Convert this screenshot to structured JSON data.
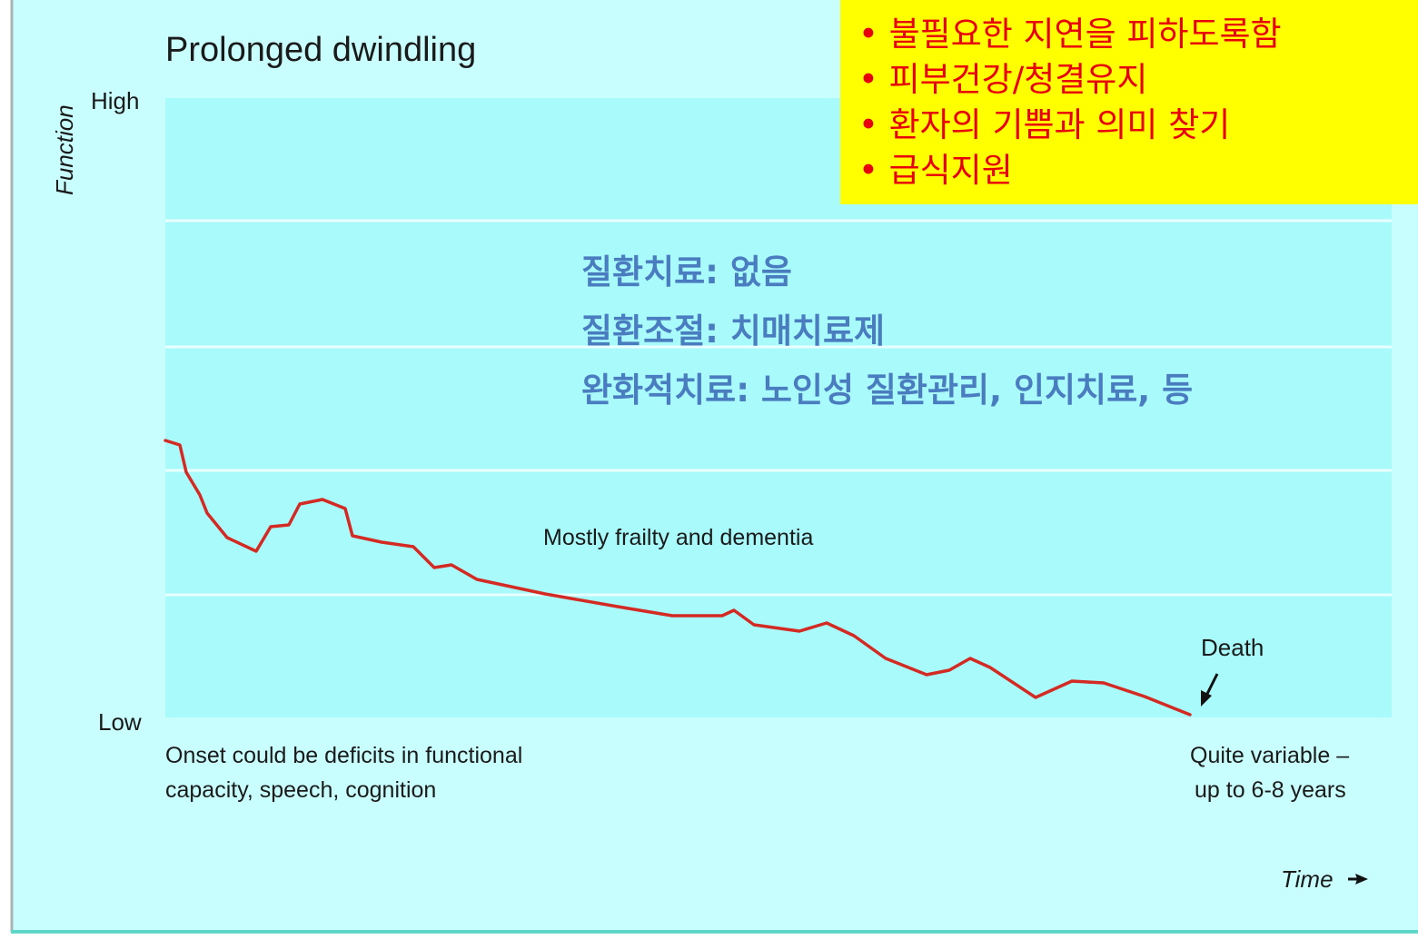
{
  "title": "Prolonged dwindling",
  "y_axis": {
    "label": "Function",
    "high": "High",
    "low": "Low"
  },
  "x_axis": {
    "label": "Time"
  },
  "annotations": {
    "center": "Mostly frailty and dementia",
    "death": "Death",
    "onset": [
      "Onset could be deficits in functional",
      "capacity, speech, cognition"
    ],
    "duration": [
      "Quite variable –",
      "up to 6-8 years"
    ]
  },
  "yellow_box": {
    "items": [
      "• 불필요한 지연을 피하도록함",
      "• 피부건강/청결유지",
      "• 환자의 기쁨과 의미 찾기",
      "• 급식지원"
    ]
  },
  "treatment": {
    "lines": [
      "질환치료: 없음",
      "질환조절: 치매치료제",
      "완화적치료: 노인성 질환관리, 인지치료, 등"
    ]
  }
}
